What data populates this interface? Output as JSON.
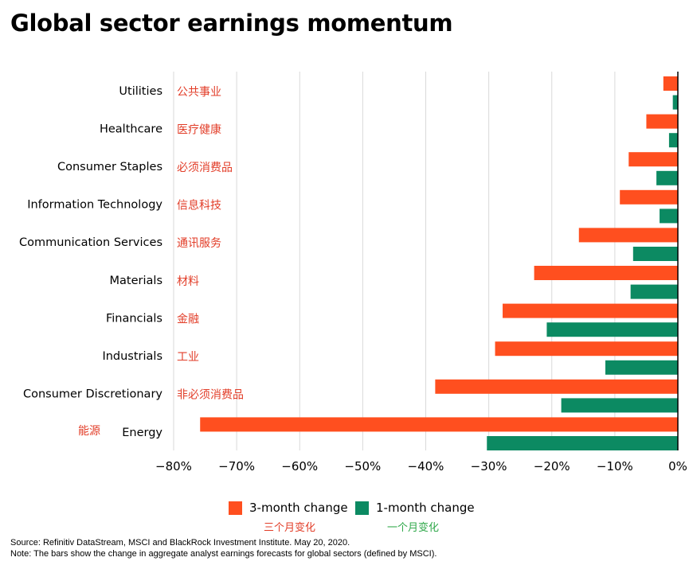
{
  "title": "Global sector earnings momentum",
  "chart_data": {
    "type": "bar",
    "orientation": "horizontal",
    "categories": [
      "Utilities",
      "Healthcare",
      "Consumer Staples",
      "Information Technology",
      "Communication Services",
      "Materials",
      "Financials",
      "Industrials",
      "Consumer Discretionary",
      "Energy"
    ],
    "categories_cn": [
      "公共事业",
      "医疗健康",
      "必须消费品",
      "信息科技",
      "通讯服务",
      "材料",
      "金融",
      "工业",
      "非必须消费品",
      "能源"
    ],
    "series": [
      {
        "name": "3-month change",
        "name_cn": "三个月变化",
        "color": "#ff4f1f",
        "values": [
          -2.3,
          -5.0,
          -7.8,
          -9.2,
          -15.7,
          -22.8,
          -27.8,
          -29.0,
          -38.5,
          -75.8
        ]
      },
      {
        "name": "1-month change",
        "name_cn": "一个月变化",
        "color": "#0c8a62",
        "values": [
          -0.8,
          -1.4,
          -3.4,
          -2.9,
          -7.1,
          -7.5,
          -20.8,
          -11.5,
          -18.5,
          -30.3
        ]
      }
    ],
    "xlim": [
      -80,
      0
    ],
    "xticks": [
      -80,
      -70,
      -60,
      -50,
      -40,
      -30,
      -20,
      -10,
      0
    ],
    "xtick_labels": [
      "−80%",
      "−70%",
      "−60%",
      "−50%",
      "−40%",
      "−30%",
      "−20%",
      "−10%",
      "0%"
    ],
    "grid": true,
    "legend_position": "bottom-center"
  },
  "legend": {
    "three_month": "3-month change",
    "three_month_cn": "三个月变化",
    "one_month": "1-month change",
    "one_month_cn": "一个月变化"
  },
  "footnote": {
    "source": "Source: Refinitiv DataStream, MSCI and BlackRock Investment Institute. May 20, 2020.",
    "note": "Note: The bars show the change in aggregate analyst earnings forecasts for global sectors (defined by MSCI)."
  },
  "colors": {
    "three_month": "#ff4f1f",
    "one_month": "#0c8a62",
    "cn_label": "#e23d28",
    "cn_legend_green": "#2fa84a",
    "grid": "#d9d9d9"
  }
}
